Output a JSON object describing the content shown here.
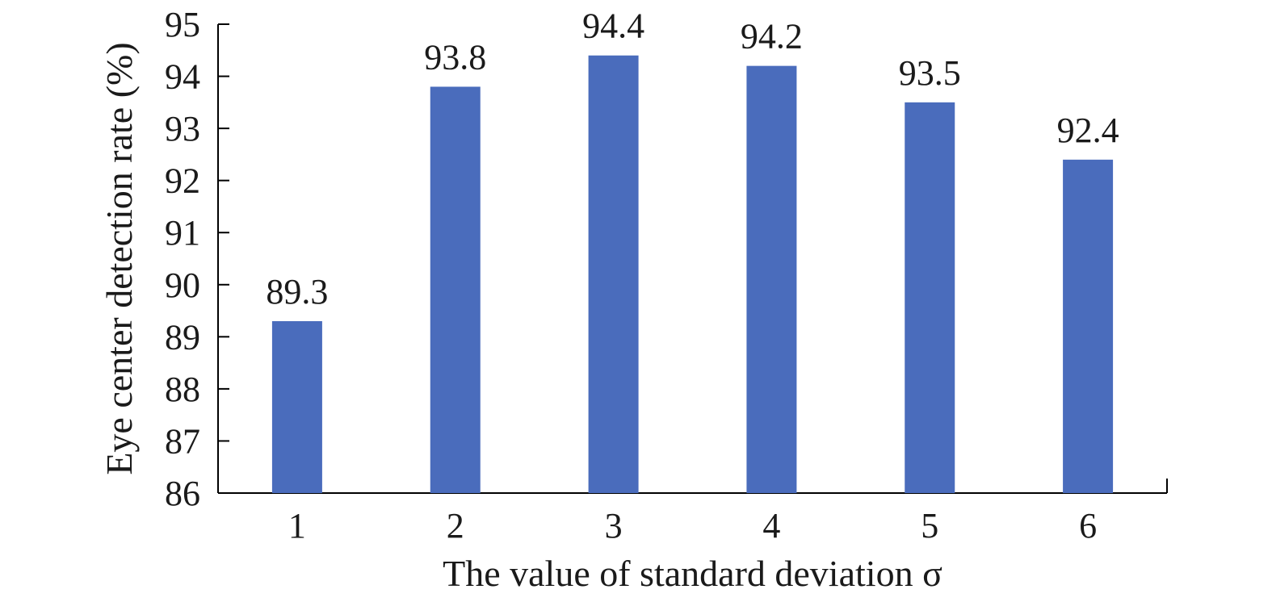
{
  "chart_data": {
    "type": "bar",
    "categories": [
      "1",
      "2",
      "3",
      "4",
      "5",
      "6"
    ],
    "values": [
      89.3,
      93.8,
      94.4,
      94.2,
      93.5,
      92.4
    ],
    "data_labels": [
      "89.3",
      "93.8",
      "94.4",
      "94.2",
      "93.5",
      "92.4"
    ],
    "xlabel": "The value of standard deviation σ",
    "ylabel": "Eye center detection rate (%)",
    "ylim": [
      86,
      95
    ],
    "yticks": [
      "86",
      "87",
      "88",
      "89",
      "90",
      "91",
      "92",
      "93",
      "94",
      "95"
    ],
    "grid": false,
    "legend": "none",
    "bar_color": "#4a6cbc"
  }
}
